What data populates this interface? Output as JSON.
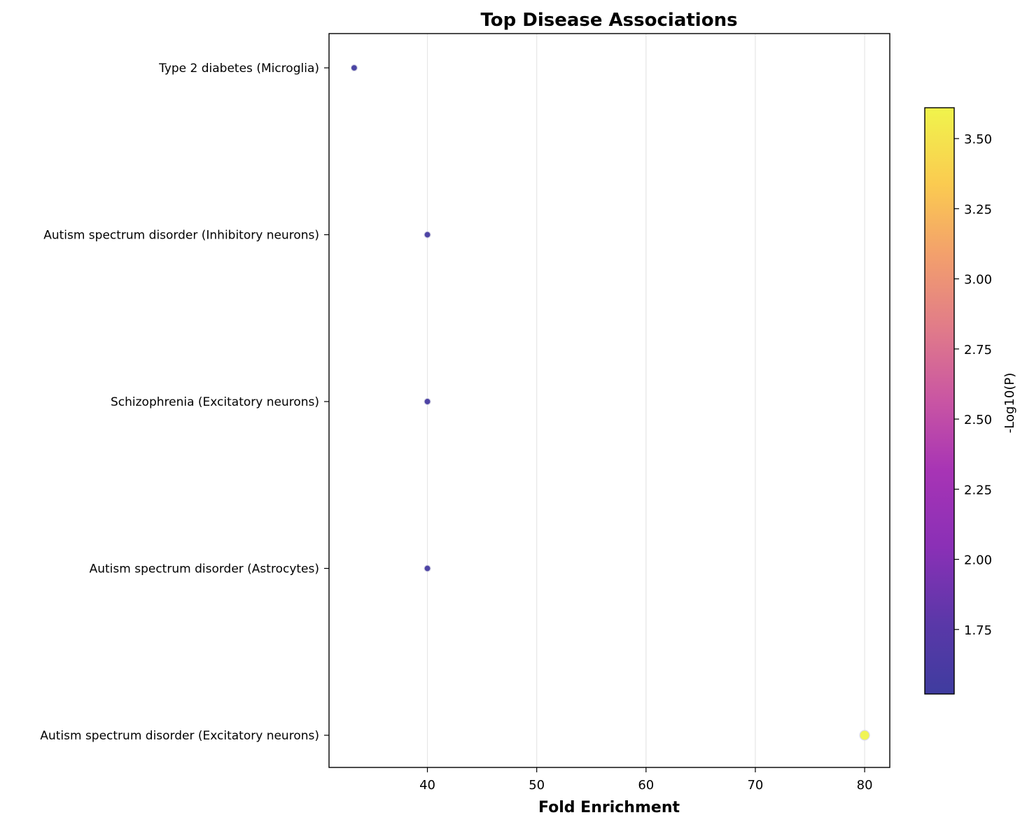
{
  "chart_data": {
    "type": "scatter",
    "title": "Top Disease Associations",
    "xlabel": "Fold Enrichment",
    "ylabel": "",
    "categories": [
      "Type 2 diabetes (Microglia)",
      "Autism spectrum disorder (Inhibitory neurons)",
      "Schizophrenia (Excitatory neurons)",
      "Autism spectrum disorder (Astrocytes)",
      "Autism spectrum disorder (Excitatory neurons)"
    ],
    "points": [
      {
        "category": "Type 2 diabetes (Microglia)",
        "x": 33.3,
        "neg_log10_p": 1.55
      },
      {
        "category": "Autism spectrum disorder (Inhibitory neurons)",
        "x": 40.0,
        "neg_log10_p": 1.58
      },
      {
        "category": "Schizophrenia (Excitatory neurons)",
        "x": 40.0,
        "neg_log10_p": 1.58
      },
      {
        "category": "Autism spectrum disorder (Astrocytes)",
        "x": 40.0,
        "neg_log10_p": 1.58
      },
      {
        "category": "Autism spectrum disorder (Excitatory neurons)",
        "x": 80.0,
        "neg_log10_p": 3.61
      }
    ],
    "xlim": [
      31,
      82.3
    ],
    "xticks": [
      40,
      50,
      60,
      70,
      80
    ],
    "grid": "vertical",
    "colorbar": {
      "label": "-Log10(P)",
      "colormap": "plasma",
      "range": [
        1.52,
        3.61
      ],
      "ticks": [
        1.75,
        2.0,
        2.25,
        2.5,
        2.75,
        3.0,
        3.25,
        3.5
      ],
      "tick_labels": [
        "1.75",
        "2.00",
        "2.25",
        "2.50",
        "2.75",
        "3.00",
        "3.25",
        "3.50"
      ]
    }
  }
}
